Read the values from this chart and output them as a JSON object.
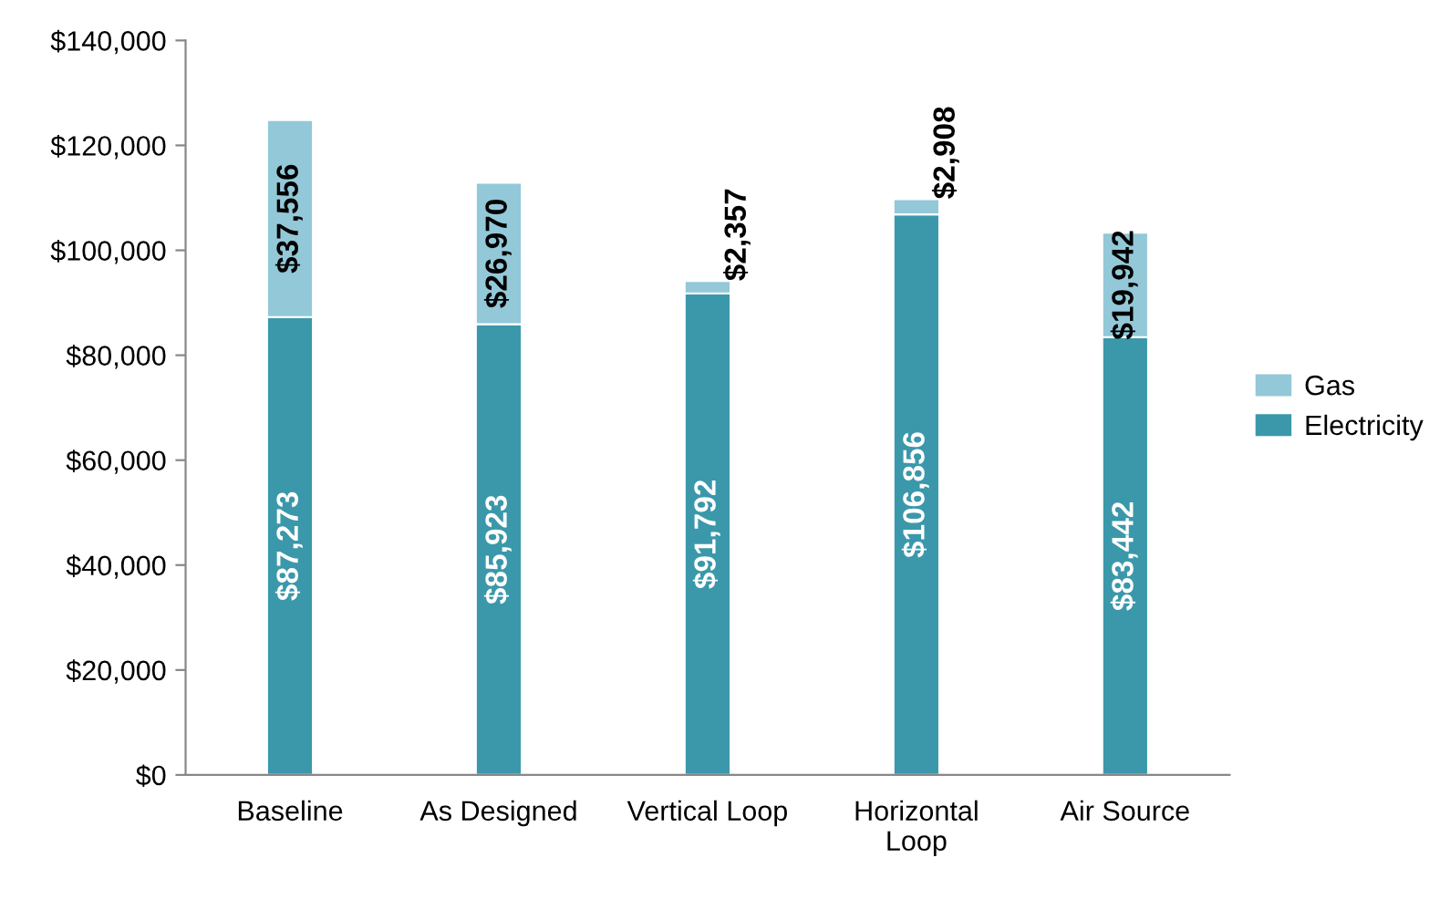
{
  "chart_data": {
    "type": "bar",
    "stacked": true,
    "categories": [
      "Baseline",
      "As Designed",
      "Vertical Loop",
      "Horizontal\nLoop",
      "Air Source"
    ],
    "series": [
      {
        "name": "Electricity",
        "color": "#3b98ab",
        "values": [
          87273,
          85923,
          91792,
          106856,
          83442
        ],
        "value_labels": [
          "$87,273",
          "$85,923",
          "$91,792",
          "$106,856",
          "$83,442"
        ]
      },
      {
        "name": "Gas",
        "color": "#93c8d8",
        "values": [
          37556,
          26970,
          2357,
          2908,
          19942
        ],
        "value_labels": [
          "$37,556",
          "$26,970",
          "$2,357",
          "$2,908",
          "$19,942"
        ]
      }
    ],
    "ylim": [
      0,
      140000
    ],
    "yticks": [
      {
        "value": 0,
        "label": "$0"
      },
      {
        "value": 20000,
        "label": "$20,000"
      },
      {
        "value": 40000,
        "label": "$40,000"
      },
      {
        "value": 60000,
        "label": "$60,000"
      },
      {
        "value": 80000,
        "label": "$80,000"
      },
      {
        "value": 100000,
        "label": "$100,000"
      },
      {
        "value": 120000,
        "label": "$120,000"
      },
      {
        "value": 140000,
        "label": "$140,000"
      }
    ],
    "grid": false,
    "legend": "right"
  }
}
